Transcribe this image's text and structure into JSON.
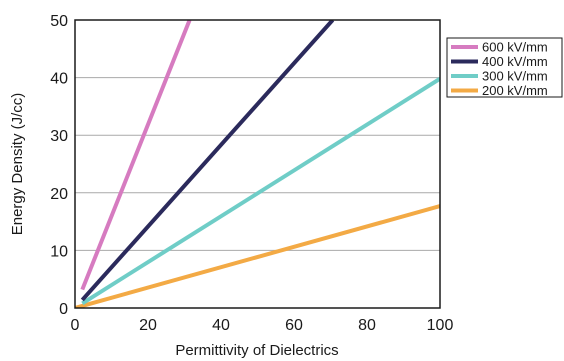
{
  "chart_data": {
    "type": "line",
    "xlabel": "Permittivity of Dielectrics",
    "ylabel": "Energy Density (J/cc)",
    "xlim": [
      0,
      100
    ],
    "ylim": [
      0,
      50
    ],
    "xticks": [
      0,
      20,
      40,
      60,
      80,
      100
    ],
    "yticks": [
      0,
      10,
      20,
      30,
      40,
      50
    ],
    "grid": "horizontal",
    "legend_position": "top-right, outside plot",
    "series": [
      {
        "name": "600 kV/mm",
        "color": "#d67bc0",
        "x": [
          2,
          31.4
        ],
        "y": [
          3.2,
          50
        ]
      },
      {
        "name": "400 kV/mm",
        "color": "#2b2a5c",
        "x": [
          2,
          70.6
        ],
        "y": [
          1.4,
          50
        ]
      },
      {
        "name": "300 kV/mm",
        "color": "#6fcdc7",
        "x": [
          2,
          100
        ],
        "y": [
          0.8,
          39.8
        ]
      },
      {
        "name": "200 kV/mm",
        "color": "#f3aa45",
        "x": [
          0,
          100
        ],
        "y": [
          0,
          17.7
        ]
      }
    ]
  }
}
